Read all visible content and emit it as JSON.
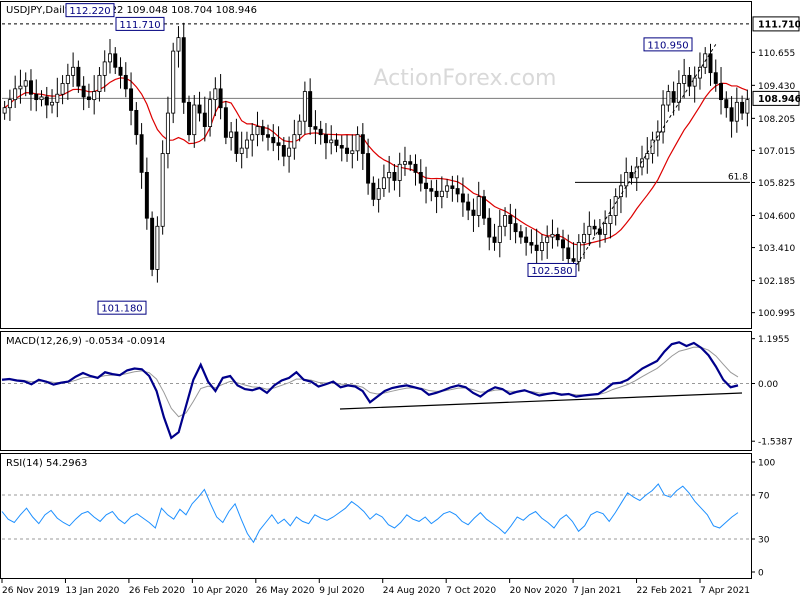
{
  "chart_data": {
    "type": "candlestick",
    "symbol_title": "USDJPY,Daily",
    "ohlc": "108.922 109.048 108.704 108.946",
    "watermark": "ActionForex.com",
    "colors": {
      "candle": "#000000",
      "ma": "#dd0000",
      "macd": "#00008b",
      "signal": "#999999",
      "rsi": "#1e90ff",
      "annotation_text": "#000080",
      "watermark": "#d9d9d9"
    },
    "x_tick_labels": [
      "26 Nov 2019",
      "13 Jan 2020",
      "26 Feb 2020",
      "10 Apr 2020",
      "26 May 2020",
      "9 Jul 2020",
      "24 Aug 2020",
      "7 Oct 2020",
      "20 Nov 2020",
      "7 Jan 2021",
      "22 Feb 2021",
      "7 Apr 2021"
    ],
    "price_panel": {
      "ylim": [
        100.5,
        112.3
      ],
      "y_tick_values": [
        110.655,
        109.43,
        108.205,
        107.015,
        105.825,
        104.6,
        103.41,
        102.185,
        100.995
      ],
      "y_tick_labels": [
        "110.655",
        "109.430",
        "108.205",
        "107.015",
        "105.825",
        "104.600",
        "103.410",
        "102.185",
        "100.995"
      ],
      "current_price": 108.946,
      "current_price_label": "108.946",
      "resistance": 111.71,
      "resistance_label": "111.710",
      "fib_level": 105.83,
      "fib_label": "61.8",
      "callouts": [
        {
          "label": "112.220",
          "price": 112.22
        },
        {
          "label": "111.710",
          "price": 111.71
        },
        {
          "label": "101.180",
          "price": 101.18
        },
        {
          "label": "102.580",
          "price": 102.58
        },
        {
          "label": "110.950",
          "price": 110.95
        }
      ],
      "close_series": [
        108.6,
        108.9,
        109.3,
        109.4,
        109.6,
        109.1,
        108.9,
        109.0,
        108.7,
        108.8,
        109.1,
        109.5,
        109.8,
        110.1,
        109.4,
        109.0,
        108.9,
        109.2,
        109.8,
        110.3,
        110.6,
        110.1,
        109.8,
        109.3,
        108.5,
        107.6,
        106.2,
        104.5,
        102.6,
        104.2,
        106.9,
        108.4,
        110.7,
        111.2,
        108.8,
        107.6,
        108.7,
        108.4,
        107.9,
        108.9,
        109.3,
        108.6,
        107.5,
        107.7,
        106.9,
        107.1,
        107.4,
        107.6,
        107.9,
        107.6,
        107.5,
        107.3,
        107.2,
        106.8,
        107.1,
        107.6,
        108.1,
        109.2,
        107.9,
        107.8,
        107.6,
        107.3,
        107.4,
        107.2,
        107.1,
        106.9,
        107.0,
        107.6,
        106.9,
        105.8,
        105.2,
        105.6,
        106.0,
        106.2,
        105.9,
        106.5,
        106.6,
        106.5,
        106.2,
        105.8,
        105.6,
        105.5,
        105.3,
        105.5,
        105.7,
        105.6,
        105.4,
        105.1,
        104.8,
        104.6,
        105.3,
        104.5,
        103.8,
        103.6,
        104.2,
        104.6,
        104.3,
        104.0,
        103.8,
        103.6,
        103.5,
        103.3,
        103.6,
        103.8,
        103.9,
        103.7,
        103.4,
        103.0,
        102.9,
        103.6,
        103.9,
        104.2,
        104.1,
        103.9,
        104.3,
        104.6,
        105.3,
        105.7,
        106.2,
        106.0,
        106.4,
        106.7,
        106.9,
        107.4,
        107.7,
        108.7,
        109.2,
        108.8,
        109.5,
        109.8,
        109.4,
        109.7,
        110.1,
        110.6,
        109.9,
        109.5,
        108.9,
        108.6,
        108.1,
        108.8,
        108.4,
        108.9
      ]
    },
    "macd_panel": {
      "title": "MACD(12,26,9) -0.0534 -0.0914",
      "ylim": [
        -1.72,
        1.32
      ],
      "y_tick_values": [
        1.1955,
        0.0,
        -1.5387
      ],
      "y_tick_labels": [
        "1.1955",
        "0.00",
        "-1.5387"
      ],
      "macd_series": [
        0.1,
        0.12,
        0.08,
        0.06,
        -0.02,
        0.1,
        0.05,
        -0.03,
        0.02,
        0.05,
        0.18,
        0.28,
        0.2,
        0.15,
        0.3,
        0.25,
        0.22,
        0.35,
        0.4,
        0.38,
        0.2,
        -0.2,
        -0.9,
        -1.45,
        -1.3,
        -0.6,
        0.1,
        0.5,
        0.05,
        -0.2,
        0.15,
        0.2,
        -0.05,
        -0.15,
        -0.18,
        -0.12,
        -0.25,
        -0.05,
        0.08,
        0.15,
        0.3,
        0.1,
        0.05,
        -0.08,
        -0.02,
        0.05,
        -0.1,
        -0.05,
        -0.08,
        -0.2,
        -0.5,
        -0.35,
        -0.2,
        -0.12,
        -0.08,
        -0.05,
        -0.1,
        -0.15,
        -0.3,
        -0.25,
        -0.18,
        -0.1,
        -0.05,
        -0.1,
        -0.25,
        -0.35,
        -0.2,
        -0.1,
        -0.15,
        -0.28,
        -0.22,
        -0.18,
        -0.25,
        -0.32,
        -0.28,
        -0.25,
        -0.3,
        -0.28,
        -0.35,
        -0.32,
        -0.3,
        -0.28,
        -0.15,
        0.0,
        0.02,
        0.1,
        0.25,
        0.4,
        0.5,
        0.6,
        0.85,
        1.05,
        1.1,
        1.0,
        1.08,
        0.95,
        0.75,
        0.45,
        0.1,
        -0.1,
        -0.05
      ]
    },
    "rsi_panel": {
      "title": "RSI(14) 54.2963",
      "ylim": [
        0,
        100
      ],
      "y_tick_values": [
        100,
        70,
        30,
        0
      ],
      "y_tick_labels": [
        "100",
        "70",
        "30",
        "0"
      ],
      "rsi_series": [
        55,
        48,
        45,
        52,
        58,
        50,
        44,
        52,
        56,
        49,
        45,
        42,
        48,
        53,
        55,
        50,
        46,
        52,
        55,
        48,
        44,
        50,
        53,
        49,
        45,
        40,
        58,
        52,
        48,
        57,
        52,
        62,
        68,
        75,
        62,
        50,
        45,
        55,
        62,
        48,
        35,
        27,
        38,
        45,
        52,
        44,
        48,
        42,
        50,
        46,
        44,
        52,
        49,
        47,
        50,
        54,
        58,
        64,
        60,
        55,
        48,
        53,
        50,
        43,
        40,
        45,
        52,
        48,
        46,
        50,
        44,
        48,
        53,
        55,
        52,
        46,
        43,
        49,
        54,
        48,
        44,
        40,
        35,
        42,
        50,
        47,
        52,
        55,
        49,
        45,
        40,
        48,
        52,
        46,
        37,
        42,
        52,
        55,
        53,
        46,
        54,
        63,
        72,
        68,
        65,
        70,
        74,
        80,
        70,
        68,
        74,
        78,
        72,
        64,
        58,
        52,
        42,
        40,
        45,
        50,
        54
      ]
    }
  }
}
